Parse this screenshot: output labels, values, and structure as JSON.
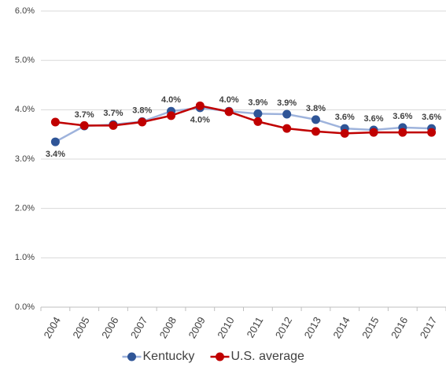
{
  "chart_data": {
    "type": "line",
    "categories": [
      "2004",
      "2005",
      "2006",
      "2007",
      "2008",
      "2009",
      "2010",
      "2011",
      "2012",
      "2013",
      "2014",
      "2015",
      "2016",
      "2017"
    ],
    "series": [
      {
        "name": "Kentucky",
        "color": "#2f5597",
        "line_color": "#9eb3dc",
        "values": [
          3.35,
          3.67,
          3.7,
          3.76,
          3.97,
          4.04,
          3.97,
          3.92,
          3.91,
          3.8,
          3.62,
          3.59,
          3.64,
          3.62
        ],
        "value_labels": [
          "3.4%",
          "3.7%",
          "3.7%",
          "3.8%",
          "4.0%",
          "4.0%",
          "4.0%",
          "3.9%",
          "3.9%",
          "3.8%",
          "3.6%",
          "3.6%",
          "3.6%",
          "3.6%"
        ]
      },
      {
        "name": "U.S. average",
        "color": "#c00000",
        "line_color": "#c00000",
        "values": [
          3.75,
          3.68,
          3.68,
          3.75,
          3.88,
          4.08,
          3.96,
          3.76,
          3.62,
          3.56,
          3.52,
          3.54,
          3.54,
          3.54
        ]
      }
    ],
    "ylim": [
      0,
      6
    ],
    "yticks": [
      {
        "value": 0,
        "label": "0.0%"
      },
      {
        "value": 1,
        "label": "1.0%"
      },
      {
        "value": 2,
        "label": "2.0%"
      },
      {
        "value": 3,
        "label": "3.0%"
      },
      {
        "value": 4,
        "label": "4.0%"
      },
      {
        "value": 5,
        "label": "5.0%"
      },
      {
        "value": 6,
        "label": "6.0%"
      }
    ],
    "grid": true,
    "legend": "bottom"
  }
}
